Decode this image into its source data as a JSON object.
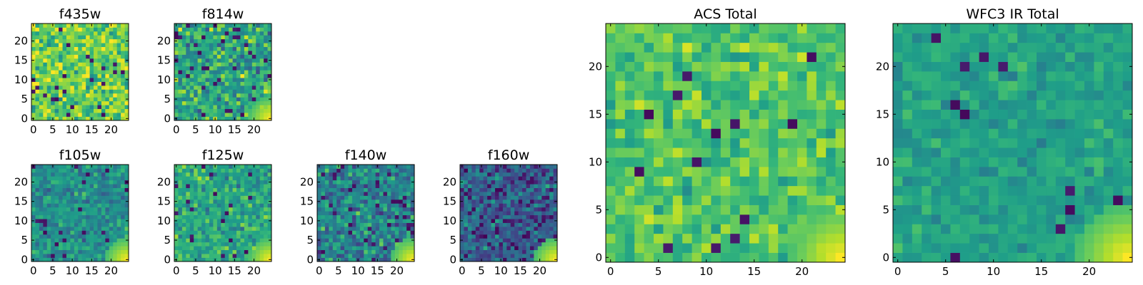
{
  "chart_data": [
    {
      "type": "heatmap",
      "title": "f435w",
      "image_size": 25,
      "xticks": [
        "0",
        "5",
        "10",
        "15",
        "20"
      ],
      "yticks": [
        "0",
        "5",
        "10",
        "15",
        "20"
      ],
      "xlim": [
        -0.5,
        24.5
      ],
      "ylim": [
        -0.5,
        24.5
      ],
      "colormap": "viridis",
      "value_range": [
        0,
        1
      ],
      "mean_level": 0.78,
      "spread": 0.13,
      "dark_fraction": 0.03,
      "bright_corner": false,
      "seed": 11
    },
    {
      "type": "heatmap",
      "title": "f814w",
      "image_size": 25,
      "xticks": [
        "0",
        "5",
        "10",
        "15",
        "20"
      ],
      "yticks": [
        "0",
        "5",
        "10",
        "15",
        "20"
      ],
      "xlim": [
        -0.5,
        24.5
      ],
      "ylim": [
        -0.5,
        24.5
      ],
      "colormap": "viridis",
      "value_range": [
        0,
        1
      ],
      "mean_level": 0.6,
      "spread": 0.14,
      "dark_fraction": 0.05,
      "bright_corner": true,
      "seed": 23
    },
    {
      "type": "heatmap",
      "title": "f105w",
      "image_size": 25,
      "xticks": [
        "0",
        "5",
        "10",
        "15",
        "20"
      ],
      "yticks": [
        "0",
        "5",
        "10",
        "15",
        "20"
      ],
      "xlim": [
        -0.5,
        24.5
      ],
      "ylim": [
        -0.5,
        24.5
      ],
      "colormap": "viridis",
      "value_range": [
        0,
        1
      ],
      "mean_level": 0.5,
      "spread": 0.1,
      "dark_fraction": 0.03,
      "bright_corner": true,
      "seed": 37
    },
    {
      "type": "heatmap",
      "title": "f125w",
      "image_size": 25,
      "xticks": [
        "0",
        "5",
        "10",
        "15",
        "20"
      ],
      "yticks": [
        "0",
        "5",
        "10",
        "15",
        "20"
      ],
      "xlim": [
        -0.5,
        24.5
      ],
      "ylim": [
        -0.5,
        24.5
      ],
      "colormap": "viridis",
      "value_range": [
        0,
        1
      ],
      "mean_level": 0.6,
      "spread": 0.11,
      "dark_fraction": 0.03,
      "bright_corner": true,
      "seed": 41
    },
    {
      "type": "heatmap",
      "title": "f140w",
      "image_size": 25,
      "xticks": [
        "0",
        "5",
        "10",
        "15",
        "20"
      ],
      "yticks": [
        "0",
        "5",
        "10",
        "15",
        "20"
      ],
      "xlim": [
        -0.5,
        24.5
      ],
      "ylim": [
        -0.5,
        24.5
      ],
      "colormap": "viridis",
      "value_range": [
        0,
        1
      ],
      "mean_level": 0.45,
      "spread": 0.13,
      "dark_fraction": 0.05,
      "bright_corner": true,
      "seed": 53
    },
    {
      "type": "heatmap",
      "title": "f160w",
      "image_size": 25,
      "xticks": [
        "0",
        "5",
        "10",
        "15",
        "20"
      ],
      "yticks": [
        "0",
        "5",
        "10",
        "15",
        "20"
      ],
      "xlim": [
        -0.5,
        24.5
      ],
      "ylim": [
        -0.5,
        24.5
      ],
      "colormap": "viridis",
      "value_range": [
        0,
        1
      ],
      "mean_level": 0.3,
      "spread": 0.12,
      "dark_fraction": 0.08,
      "bright_corner": true,
      "seed": 67
    },
    {
      "type": "heatmap",
      "title": "ACS Total",
      "image_size": 25,
      "xticks": [
        "0",
        "5",
        "10",
        "15",
        "20"
      ],
      "yticks": [
        "0",
        "5",
        "10",
        "15",
        "20"
      ],
      "xlim": [
        -0.5,
        24.5
      ],
      "ylim": [
        -0.5,
        24.5
      ],
      "colormap": "viridis",
      "value_range": [
        0,
        1
      ],
      "mean_level": 0.72,
      "spread": 0.09,
      "dark_fraction": 0.02,
      "bright_corner": true,
      "seed": 79
    },
    {
      "type": "heatmap",
      "title": "WFC3 IR Total",
      "image_size": 25,
      "xticks": [
        "0",
        "5",
        "10",
        "15",
        "20"
      ],
      "yticks": [
        "0",
        "5",
        "10",
        "15",
        "20"
      ],
      "xlim": [
        -0.5,
        24.5
      ],
      "ylim": [
        -0.5,
        24.5
      ],
      "colormap": "viridis",
      "value_range": [
        0,
        1
      ],
      "mean_level": 0.57,
      "spread": 0.06,
      "dark_fraction": 0.02,
      "bright_corner": true,
      "seed": 97
    }
  ]
}
